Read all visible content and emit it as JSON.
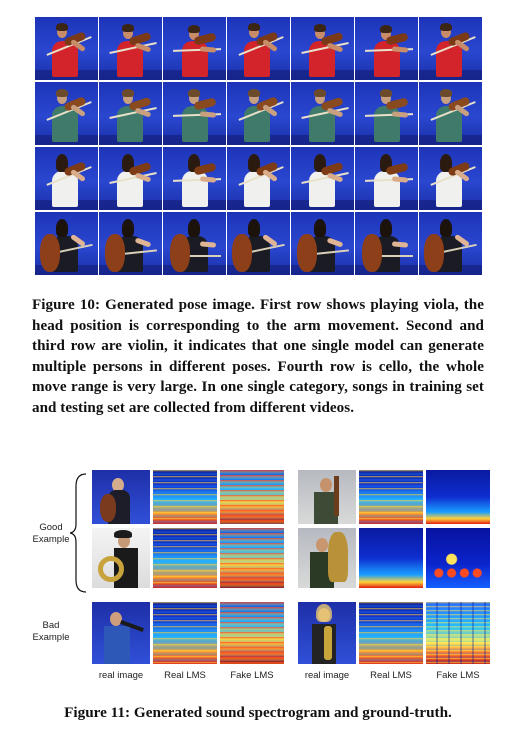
{
  "figure10": {
    "rows": [
      {
        "subject": "viola player in red shirt",
        "columns": 7
      },
      {
        "subject": "violin player in green shirt",
        "columns": 7
      },
      {
        "subject": "violin player in white top",
        "columns": 7
      },
      {
        "subject": "cello player",
        "columns": 7
      }
    ],
    "caption": "Figure 10: Generated pose image. First row shows playing viola, the head position is corresponding to the arm movement. Second and third row are violin, it indicates that one single model can generate multiple persons in different poses. Fourth row is cello, the whole move range is very large. In one single category, songs in training set and testing set are collected from different videos."
  },
  "figure11": {
    "group_labels": {
      "good": "Good\nExample",
      "bad": "Bad\nExample"
    },
    "column_labels": {
      "real_image_left": "real image",
      "real_lms_left": "Real LMS",
      "fake_lms_left": "Fake LMS",
      "real_image_right": "real image",
      "real_lms_right": "Real LMS",
      "fake_lms_right": "Fake LMS"
    },
    "caption": "Figure 11: Generated sound spectrogram and ground-truth."
  }
}
